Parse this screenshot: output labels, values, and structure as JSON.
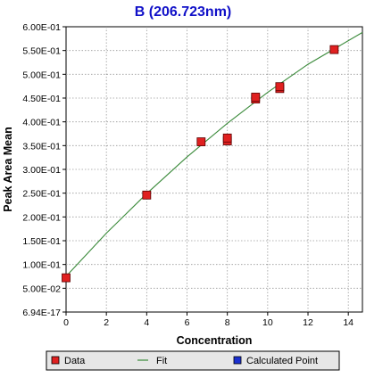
{
  "chart_data": {
    "type": "scatter",
    "title": "B (206.723nm)",
    "xlabel": "Concentration",
    "ylabel": "Peak Area Mean",
    "xlim": [
      0,
      14.7
    ],
    "ylim": [
      0,
      0.6
    ],
    "x_ticks": [
      0,
      2,
      4,
      6,
      8,
      10,
      12,
      14
    ],
    "y_ticks": [
      0,
      0.05,
      0.1,
      0.15,
      0.2,
      0.25,
      0.3,
      0.35,
      0.4,
      0.45,
      0.5,
      0.55,
      0.6
    ],
    "y_tick_labels": [
      "6.94E-17",
      "5.00E-02",
      "1.00E-01",
      "1.50E-01",
      "2.00E-01",
      "2.50E-01",
      "3.00E-01",
      "3.50E-01",
      "4.00E-01",
      "4.50E-01",
      "5.00E-01",
      "5.50E-01",
      "6.00E-01"
    ],
    "grid": true,
    "legend_position": "bottom",
    "series": [
      {
        "name": "Data",
        "kind": "scatter",
        "color": "#e02020",
        "x": [
          0,
          4.0,
          6.7,
          8.0,
          8.0,
          9.4,
          9.4,
          10.6,
          10.6,
          13.3
        ],
        "y": [
          0.072,
          0.246,
          0.358,
          0.36,
          0.366,
          0.448,
          0.452,
          0.47,
          0.474,
          0.552
        ]
      },
      {
        "name": "Fit",
        "kind": "line",
        "color": "#3a8a3a",
        "x": [
          0,
          2,
          4,
          6,
          8,
          10,
          12,
          14.7
        ],
        "y": [
          0.075,
          0.166,
          0.249,
          0.326,
          0.397,
          0.462,
          0.521,
          0.588
        ]
      },
      {
        "name": "Calculated Point",
        "kind": "scatter",
        "color": "#1a2fd0",
        "x": [],
        "y": []
      }
    ],
    "colors": {
      "title": "#1010c8",
      "grid": "#9a9a9a",
      "legend_bg": "#e6e6e6"
    }
  }
}
